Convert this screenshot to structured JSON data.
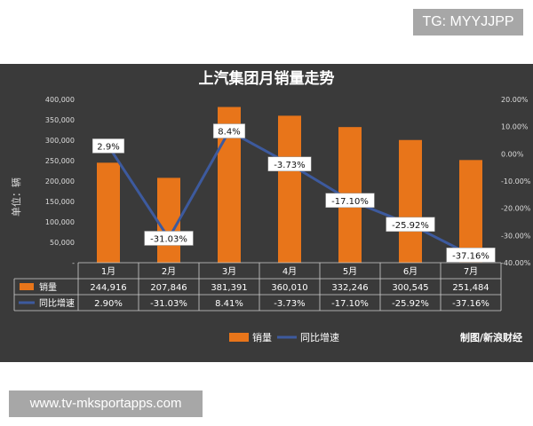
{
  "watermark_top": "TG: MYYJJPP",
  "watermark_bottom": "www.tv-mksportapps.com",
  "source_label": "制图/新浪财经",
  "colors": {
    "bar": "#e8751a",
    "line": "#3d5a9e",
    "panel": "#3a3a3a"
  },
  "chart_data": {
    "type": "bar",
    "title": "上汽集团月销量走势",
    "ylabel": "单位：辆",
    "categories": [
      "1月",
      "2月",
      "3月",
      "4月",
      "5月",
      "6月",
      "7月"
    ],
    "series": [
      {
        "name": "销量",
        "type": "bar",
        "axis": "left",
        "values": [
          244916,
          207846,
          381391,
          360010,
          332246,
          300545,
          251484
        ],
        "display": [
          "244,916",
          "207,846",
          "381,391",
          "360,010",
          "332,246",
          "300,545",
          "251,484"
        ]
      },
      {
        "name": "同比增速",
        "type": "line",
        "axis": "right",
        "values": [
          2.9,
          -31.03,
          8.41,
          -3.73,
          -17.1,
          -25.92,
          -37.16
        ],
        "labels": [
          "2.9%",
          "-31.03%",
          "8.4%",
          "-3.73%",
          "-17.10%",
          "-25.92%",
          "-37.16%"
        ],
        "display": [
          "2.90%",
          "-31.03%",
          "8.41%",
          "-3.73%",
          "-17.10%",
          "-25.92%",
          "-37.16%"
        ]
      }
    ],
    "y_left": {
      "ticks": [
        "400,000",
        "350,000",
        "300,000",
        "250,000",
        "200,000",
        "150,000",
        "100,000",
        "50,000",
        "-"
      ],
      "range": [
        0,
        400000
      ]
    },
    "y_right": {
      "ticks": [
        "20.00%",
        "10.00%",
        "0.00%",
        "-10.00%",
        "-20.00%",
        "-30.00%",
        "-40.00%"
      ],
      "range": [
        -40,
        20
      ]
    },
    "legend": [
      "销量",
      "同比增速"
    ],
    "legend_position": "bottom",
    "grid": false
  }
}
